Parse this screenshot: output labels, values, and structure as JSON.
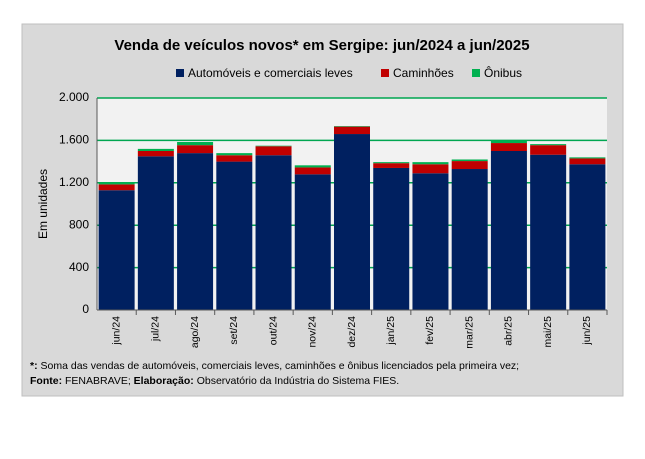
{
  "chart_data": {
    "type": "stacked_bar",
    "title": "Venda de veículos novos* em Sergipe: jun/2024 a jun/2025",
    "ylabel": "Em unidades",
    "categories": [
      "jun/24",
      "jul/24",
      "ago/24",
      "set/24",
      "out/24",
      "nov/24",
      "dez/24",
      "jan/25",
      "fev/25",
      "mar/25",
      "abr/25",
      "mai/25",
      "jun/25"
    ],
    "series": [
      {
        "name": "Automóveis e comerciais leves",
        "color": "#002060",
        "values": [
          1130,
          1450,
          1480,
          1400,
          1460,
          1280,
          1660,
          1340,
          1290,
          1330,
          1500,
          1465,
          1375
        ]
      },
      {
        "name": "Caminhões",
        "color": "#c00000",
        "values": [
          55,
          50,
          75,
          60,
          85,
          65,
          70,
          45,
          85,
          75,
          75,
          90,
          55
        ]
      },
      {
        "name": "Ônibus",
        "color": "#00b050",
        "values": [
          20,
          20,
          30,
          20,
          5,
          20,
          5,
          10,
          20,
          15,
          25,
          10,
          10
        ]
      }
    ],
    "ylim": [
      0,
      2000
    ],
    "yticks": [
      0,
      400,
      800,
      {
        "value": 1200,
        "label": "1.200"
      },
      {
        "value": 1600,
        "label": "1.600"
      },
      {
        "value": 2000,
        "label": "2.000"
      }
    ],
    "grid": true,
    "grid_color": "#00a651",
    "legend": "top",
    "footnote": {
      "note_mark": "*:",
      "note_text": "Soma das vendas de automóveis, comerciais leves, caminhões e ônibus licenciados pela primeira vez;",
      "source_label": "Fonte:",
      "source": "FENABRAVE;",
      "author_label": "Elaboração:",
      "author": "Observatório da Indústria do Sistema FIES."
    }
  }
}
